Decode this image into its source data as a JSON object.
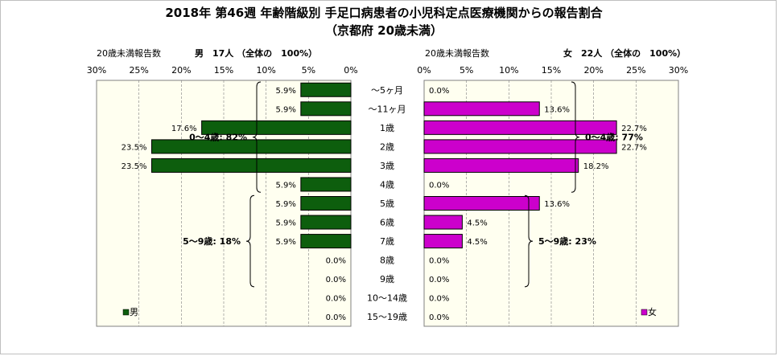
{
  "title": "2018年 第46週 年齢階級別 手足口病患者の小児科定点医療機関からの報告割合",
  "subtitle": "（京都府 20歳未満）",
  "chart_data": {
    "type": "bar",
    "orientation": "horizontal-butterfly",
    "categories": [
      "～5ヶ月",
      "～11ヶ月",
      "1歳",
      "2歳",
      "3歳",
      "4歳",
      "5歳",
      "6歳",
      "7歳",
      "8歳",
      "9歳",
      "10～14歳",
      "15～19歳"
    ],
    "xlim": [
      0,
      30
    ],
    "tick_values": [
      0,
      5,
      10,
      15,
      20,
      25,
      30
    ],
    "grid": true,
    "male": {
      "header_left": "20歳未満報告数",
      "header_right": "男　17人 （全体の　100%）",
      "legend": "男",
      "color": "#0d5e0d",
      "values": [
        5.9,
        5.9,
        17.6,
        23.5,
        23.5,
        5.9,
        5.9,
        5.9,
        5.9,
        0.0,
        0.0,
        0.0,
        0.0
      ],
      "brackets": [
        {
          "label": "0～4歳: 82%",
          "from": 0,
          "to": 5
        },
        {
          "label": "5～9歳: 18%",
          "from": 6,
          "to": 10
        }
      ]
    },
    "female": {
      "header_left": "20歳未満報告数",
      "header_right": "女　22人 （全体の　100%）",
      "legend": "女",
      "color": "#cc00cc",
      "values": [
        0.0,
        13.6,
        22.7,
        22.7,
        18.2,
        0.0,
        13.6,
        4.5,
        4.5,
        0.0,
        0.0,
        0.0,
        0.0
      ],
      "brackets": [
        {
          "label": "0～4歳: 77%",
          "from": 0,
          "to": 5
        },
        {
          "label": "5～9歳: 23%",
          "from": 6,
          "to": 10
        }
      ]
    }
  }
}
